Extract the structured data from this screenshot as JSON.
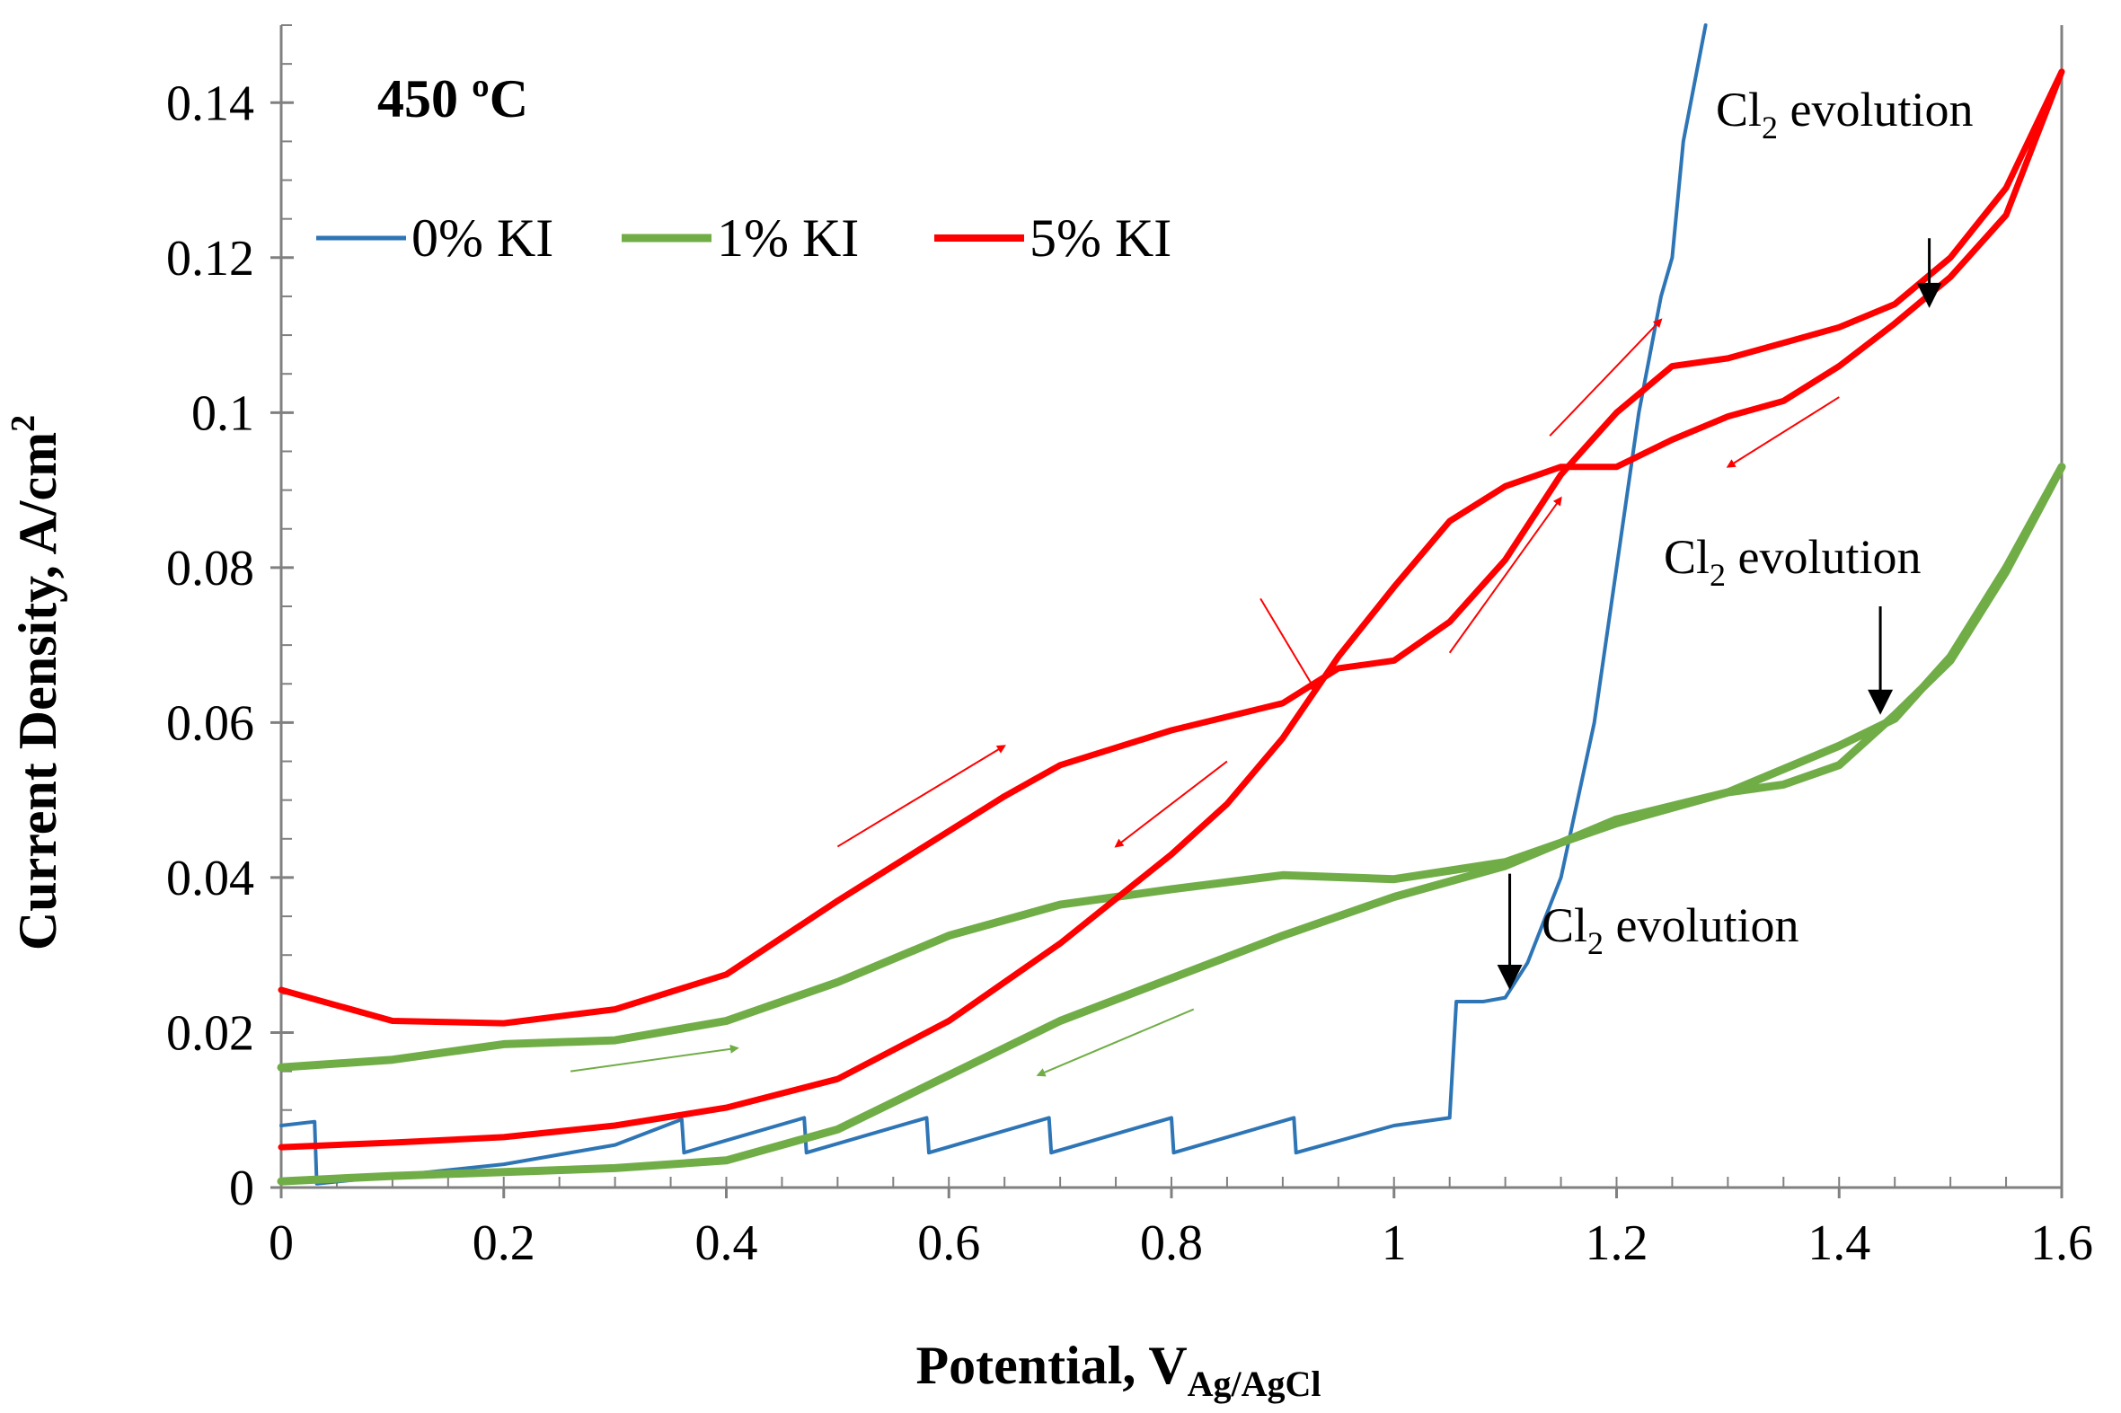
{
  "chart_data": {
    "type": "line",
    "title": "",
    "annotation_temp": "450 ºC",
    "xlabel": {
      "main": "Potential, V",
      "sub": "Ag/AgCl"
    },
    "ylabel": {
      "main": "Current Density, A/cm",
      "sup": "2"
    },
    "xlim": [
      0,
      1.6
    ],
    "ylim": [
      0,
      0.15
    ],
    "x_ticks": [
      0,
      0.2,
      0.4,
      0.6,
      0.8,
      1.0,
      1.2,
      1.4,
      1.6
    ],
    "x_tick_labels": [
      "0",
      "0.2",
      "0.4",
      "0.6",
      "0.8",
      "1",
      "1.2",
      "1.4",
      "1.6"
    ],
    "y_ticks": [
      0,
      0.02,
      0.04,
      0.06,
      0.08,
      0.1,
      0.12,
      0.14
    ],
    "y_tick_labels": [
      "0",
      "0.02",
      "0.04",
      "0.06",
      "0.08",
      "0.1",
      "0.12",
      "0.14"
    ],
    "legend_position": "top-left",
    "series": [
      {
        "name": "0% KI",
        "color": "#2e75b6",
        "points": [
          [
            0,
            0.008
          ],
          [
            0.03,
            0.0085
          ],
          [
            0.032,
            0.0005
          ],
          [
            0.1,
            0.0015
          ],
          [
            0.2,
            0.003
          ],
          [
            0.3,
            0.0055
          ],
          [
            0.36,
            0.0088
          ],
          [
            0.362,
            0.0045
          ],
          [
            0.47,
            0.009
          ],
          [
            0.472,
            0.0045
          ],
          [
            0.58,
            0.009
          ],
          [
            0.582,
            0.0045
          ],
          [
            0.69,
            0.009
          ],
          [
            0.692,
            0.0045
          ],
          [
            0.8,
            0.009
          ],
          [
            0.802,
            0.0045
          ],
          [
            0.91,
            0.009
          ],
          [
            0.912,
            0.0045
          ],
          [
            1.0,
            0.008
          ],
          [
            1.05,
            0.009
          ],
          [
            1.056,
            0.024
          ],
          [
            1.08,
            0.024
          ],
          [
            1.1,
            0.0245
          ],
          [
            1.12,
            0.029
          ],
          [
            1.15,
            0.04
          ],
          [
            1.18,
            0.06
          ],
          [
            1.2,
            0.08
          ],
          [
            1.22,
            0.1
          ],
          [
            1.24,
            0.115
          ],
          [
            1.25,
            0.12
          ],
          [
            1.26,
            0.135
          ],
          [
            1.28,
            0.15
          ]
        ]
      },
      {
        "name": "1% KI",
        "color": "#70ad47",
        "points": [
          [
            0,
            0.0155
          ],
          [
            0.1,
            0.0165
          ],
          [
            0.2,
            0.0185
          ],
          [
            0.3,
            0.019
          ],
          [
            0.4,
            0.0215
          ],
          [
            0.5,
            0.0265
          ],
          [
            0.6,
            0.0325
          ],
          [
            0.7,
            0.0365
          ],
          [
            0.8,
            0.0385
          ],
          [
            0.9,
            0.0403
          ],
          [
            1.0,
            0.0398
          ],
          [
            1.1,
            0.042
          ],
          [
            1.2,
            0.047
          ],
          [
            1.3,
            0.051
          ],
          [
            1.35,
            0.054
          ],
          [
            1.4,
            0.057
          ],
          [
            1.45,
            0.0605
          ],
          [
            1.5,
            0.0685
          ],
          [
            1.55,
            0.08
          ],
          [
            1.6,
            0.093
          ],
          [
            1.55,
            0.0795
          ],
          [
            1.5,
            0.068
          ],
          [
            1.45,
            0.061
          ],
          [
            1.4,
            0.0545
          ],
          [
            1.35,
            0.052
          ],
          [
            1.3,
            0.051
          ],
          [
            1.2,
            0.0475
          ],
          [
            1.1,
            0.0415
          ],
          [
            1.0,
            0.0375
          ],
          [
            0.9,
            0.0325
          ],
          [
            0.8,
            0.027
          ],
          [
            0.7,
            0.0215
          ],
          [
            0.6,
            0.0145
          ],
          [
            0.5,
            0.0075
          ],
          [
            0.4,
            0.0035
          ],
          [
            0.3,
            0.0025
          ],
          [
            0.2,
            0.002
          ],
          [
            0.1,
            0.0015
          ],
          [
            0,
            0.0008
          ]
        ]
      },
      {
        "name": "5% KI",
        "color": "#ff0000",
        "points": [
          [
            0,
            0.0255
          ],
          [
            0.1,
            0.0215
          ],
          [
            0.2,
            0.0212
          ],
          [
            0.3,
            0.023
          ],
          [
            0.4,
            0.0275
          ],
          [
            0.5,
            0.037
          ],
          [
            0.6,
            0.046
          ],
          [
            0.65,
            0.0505
          ],
          [
            0.7,
            0.0545
          ],
          [
            0.8,
            0.059
          ],
          [
            0.9,
            0.0625
          ],
          [
            0.95,
            0.067
          ],
          [
            1.0,
            0.068
          ],
          [
            1.05,
            0.073
          ],
          [
            1.1,
            0.081
          ],
          [
            1.15,
            0.092
          ],
          [
            1.2,
            0.1
          ],
          [
            1.25,
            0.106
          ],
          [
            1.3,
            0.107
          ],
          [
            1.35,
            0.109
          ],
          [
            1.4,
            0.111
          ],
          [
            1.45,
            0.114
          ],
          [
            1.5,
            0.12
          ],
          [
            1.55,
            0.129
          ],
          [
            1.6,
            0.144
          ],
          [
            1.55,
            0.1255
          ],
          [
            1.5,
            0.1175
          ],
          [
            1.45,
            0.1115
          ],
          [
            1.4,
            0.106
          ],
          [
            1.35,
            0.1015
          ],
          [
            1.3,
            0.0995
          ],
          [
            1.25,
            0.0965
          ],
          [
            1.2,
            0.093
          ],
          [
            1.15,
            0.093
          ],
          [
            1.1,
            0.0905
          ],
          [
            1.05,
            0.086
          ],
          [
            1.0,
            0.0775
          ],
          [
            0.95,
            0.0685
          ],
          [
            0.9,
            0.058
          ],
          [
            0.85,
            0.0495
          ],
          [
            0.8,
            0.043
          ],
          [
            0.7,
            0.0315
          ],
          [
            0.6,
            0.0215
          ],
          [
            0.5,
            0.014
          ],
          [
            0.4,
            0.0103
          ],
          [
            0.3,
            0.008
          ],
          [
            0.2,
            0.0065
          ],
          [
            0.1,
            0.0058
          ],
          [
            0,
            0.0052
          ]
        ]
      }
    ],
    "annotations": [
      {
        "text": "Cl",
        "sub": "2",
        "rest": " evolution"
      },
      {
        "text": "Cl",
        "sub": "2",
        "rest": " evolution"
      },
      {
        "text": "Cl",
        "sub": "2",
        "rest": " evolution"
      }
    ],
    "sweep_arrows": [
      {
        "color": "#ff0000",
        "from": [
          0.5,
          0.044
        ],
        "to": [
          0.65,
          0.057
        ]
      },
      {
        "color": "#ff0000",
        "from": [
          0.85,
          0.055
        ],
        "to": [
          0.75,
          0.044
        ]
      },
      {
        "color": "#ff0000",
        "from": [
          0.88,
          0.076
        ],
        "to": [
          0.93,
          0.064
        ]
      },
      {
        "color": "#ff0000",
        "from": [
          1.05,
          0.069
        ],
        "to": [
          1.15,
          0.089
        ]
      },
      {
        "color": "#ff0000",
        "from": [
          1.14,
          0.097
        ],
        "to": [
          1.24,
          0.112
        ]
      },
      {
        "color": "#ff0000",
        "from": [
          1.4,
          0.102
        ],
        "to": [
          1.3,
          0.093
        ]
      },
      {
        "color": "#70ad47",
        "from": [
          0.26,
          0.015
        ],
        "to": [
          0.41,
          0.018
        ]
      },
      {
        "color": "#70ad47",
        "from": [
          0.82,
          0.023
        ],
        "to": [
          0.68,
          0.0145
        ]
      }
    ],
    "pointer_arrows": [
      {
        "from": [
          1.481,
          0.1225
        ],
        "to": [
          1.481,
          0.1135
        ]
      },
      {
        "from": [
          1.437,
          0.075
        ],
        "to": [
          1.437,
          0.061
        ]
      },
      {
        "from": [
          1.104,
          0.0405
        ],
        "to": [
          1.104,
          0.0255
        ]
      }
    ]
  }
}
